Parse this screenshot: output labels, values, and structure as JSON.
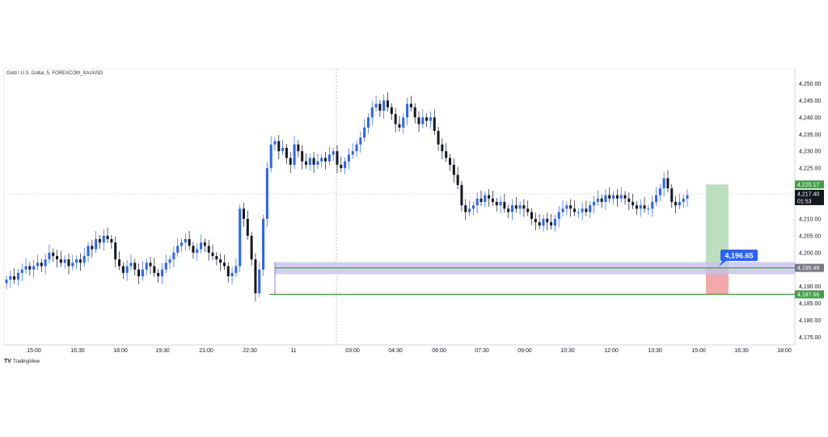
{
  "header": {
    "symbol_title": "Gold / U.S. Dollar, 5, FOREXCOM_XAUUSD"
  },
  "footer": {
    "brand": "TradingView"
  },
  "colors": {
    "up": "#2962ff",
    "down": "#131722",
    "grid": "#e6e6e6",
    "zone_fill": "#c7c2ea",
    "zone_line": "#7e57c2",
    "tp_fill": "#a5d6a7",
    "sl_fill": "#ef9a9a",
    "level_line": "#43a047",
    "label_blue": "#2962ff"
  },
  "chart_data": {
    "type": "candlestick",
    "title": "Gold / U.S. Dollar, 5, FOREXCOM_XAUUSD",
    "xlabel": "",
    "ylabel": "",
    "ylim": [
      4172,
      4253
    ],
    "y_ticks": [
      "4,250.00",
      "4,245.00",
      "4,240.00",
      "4,235.00",
      "4,230.00",
      "4,225.00",
      "4,220.00",
      "4,215.00",
      "4,210.00",
      "4,205.00",
      "4,200.00",
      "4,195.00",
      "4,190.00",
      "4,185.00",
      "4,180.00",
      "4,175.00"
    ],
    "y_tick_values": [
      4250,
      4245,
      4240,
      4235,
      4230,
      4225,
      4220,
      4215,
      4210,
      4205,
      4200,
      4195,
      4190,
      4185,
      4180,
      4175
    ],
    "x_ticks": [
      "15:00",
      "16:30",
      "18:00",
      "19:30",
      "21:00",
      "22:30",
      "11",
      "03:00",
      "04:30",
      "06:00",
      "07:30",
      "09:00",
      "10:30",
      "12:00",
      "13:30",
      "15:00",
      "16:30",
      "18:00"
    ],
    "grid": false,
    "session_separator_label": "11",
    "current_price": "4,217.40",
    "countdown": "01:53",
    "price_labels": [
      {
        "text": "4,220.17",
        "value": 4220.17,
        "color": "#43a047"
      },
      {
        "text": "4,195.49",
        "value": 4195.49,
        "color": "#787b86"
      },
      {
        "text": "4,187.66",
        "value": 4187.66,
        "color": "#43a047"
      }
    ],
    "callout": {
      "text": "4,196.65",
      "value": 4196.65
    },
    "zone": {
      "top": 4197.2,
      "bottom": 4193.6
    },
    "levels": [
      4195.49,
      4187.66
    ],
    "position": {
      "entry": 4195.49,
      "target": 4220.17,
      "stop": 4187.66
    },
    "series": [
      {
        "close": [
          4192,
          4193,
          4192,
          4194,
          4195,
          4196,
          4195,
          4196,
          4197,
          4196,
          4198,
          4200,
          4199,
          4198,
          4197,
          4198,
          4196,
          4197,
          4198,
          4197,
          4199,
          4202,
          4201,
          4204,
          4203,
          4205,
          4204,
          4203,
          4198,
          4196,
          4194,
          4196,
          4197,
          4195,
          4193,
          4195,
          4197,
          4196,
          4194,
          4193,
          4195,
          4197,
          4198,
          4200,
          4202,
          4203,
          4204,
          4202,
          4200,
          4201,
          4203,
          4202,
          4200,
          4199,
          4198,
          4197,
          4196,
          4193,
          4194,
          4196,
          4213,
          4210,
          4205,
          4198,
          4188,
          4195,
          4210,
          4225,
          4232,
          4233,
          4230,
          4231,
          4228,
          4226,
          4232,
          4230,
          4227,
          4226,
          4228,
          4226,
          4227,
          4228,
          4227,
          4229,
          4230,
          4226,
          4225,
          4227,
          4229,
          4230,
          4232,
          4234,
          4237,
          4240,
          4243,
          4244,
          4242,
          4245,
          4243,
          4241,
          4238,
          4237,
          4240,
          4244,
          4243,
          4240,
          4238,
          4240,
          4239,
          4240,
          4236,
          4232,
          4230,
          4228,
          4226,
          4223,
          4220,
          4214,
          4212,
          4213,
          4214,
          4216,
          4215,
          4217,
          4216,
          4215,
          4214,
          4215,
          4213,
          4212,
          4214,
          4213,
          4214,
          4213,
          4212,
          4210,
          4209,
          4208,
          4210,
          4209,
          4208,
          4210,
          4212,
          4213,
          4214,
          4213,
          4212,
          4212,
          4213,
          4212,
          4214,
          4215,
          4216,
          4215,
          4217,
          4216,
          4217,
          4216,
          4217,
          4216,
          4215,
          4214,
          4213,
          4214,
          4213,
          4213,
          4215,
          4217,
          4219,
          4222,
          4219,
          4215,
          4214,
          4215,
          4216,
          4217
        ]
      }
    ]
  }
}
